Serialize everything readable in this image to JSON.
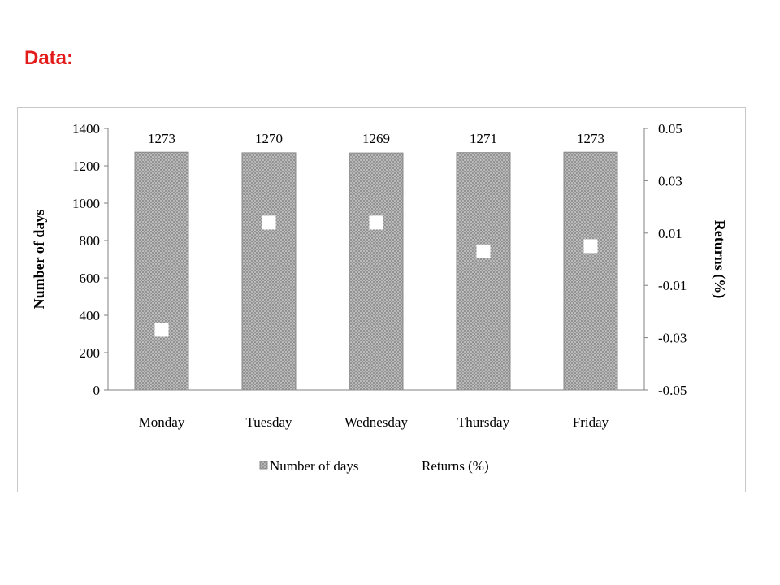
{
  "heading": {
    "text": "Data:",
    "color": "#e31b1b"
  },
  "chart_data": {
    "type": "bar",
    "categories": [
      "Monday",
      "Tuesday",
      "Wednesday",
      "Thursday",
      "Friday"
    ],
    "series": [
      {
        "name": "Number of days",
        "type": "bar",
        "axis": "left",
        "values": [
          1273,
          1270,
          1269,
          1271,
          1273
        ]
      },
      {
        "name": "Returns (%)",
        "type": "scatter",
        "axis": "right",
        "values": [
          -0.027,
          0.014,
          0.014,
          0.003,
          0.005
        ]
      }
    ],
    "ylabel": "Number of days",
    "y2label": "Returns (%)",
    "ylim": [
      0,
      1400
    ],
    "y2lim": [
      -0.05,
      0.05
    ],
    "yticks": [
      "0",
      "200",
      "400",
      "600",
      "800",
      "1000",
      "1200",
      "1400"
    ],
    "y2ticks": [
      "-0.05",
      "-0.03",
      "-0.01",
      "0.01",
      "0.03",
      "0.05"
    ],
    "data_labels": [
      "1273",
      "1270",
      "1269",
      "1271",
      "1273"
    ],
    "legend_position": "bottom",
    "grid": false,
    "colors": {
      "bar_fill": "#c4c4c4",
      "bar_hatch": "#8a8a8a",
      "marker": "#ffffff"
    }
  }
}
